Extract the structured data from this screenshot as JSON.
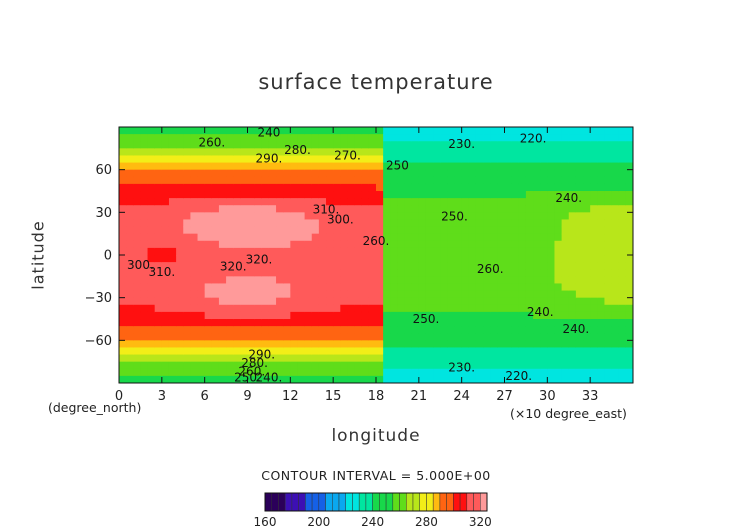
{
  "chart_data": {
    "type": "heatmap",
    "title": "surface temperature",
    "xlabel": "longitude",
    "ylabel": "latitude",
    "x_unit_left": "(degree_north)",
    "x_unit_right": "(×10 degree_east)",
    "xlim": [
      0,
      36
    ],
    "ylim": [
      -90,
      90
    ],
    "xticks": [
      "0",
      "3",
      "6",
      "9",
      "12",
      "15",
      "18",
      "21",
      "24",
      "27",
      "30",
      "33"
    ],
    "xtick_values": [
      0,
      3,
      6,
      9,
      12,
      15,
      18,
      21,
      24,
      27,
      30,
      33
    ],
    "yticks": [
      "60",
      "30",
      "0",
      "−30",
      "−60"
    ],
    "ytick_values": [
      60,
      30,
      0,
      -30,
      -60
    ],
    "contour_interval_text": "CONTOUR INTERVAL = 5.000E+00",
    "contour_interval": 5,
    "colorbar": {
      "min": 160,
      "max": 325,
      "tick_labels": [
        "160",
        "200",
        "240",
        "280",
        "320"
      ],
      "tick_values": [
        160,
        200,
        240,
        280,
        320
      ]
    },
    "contour_labels": [
      {
        "text": "240",
        "lon": 10.5,
        "lat": 86
      },
      {
        "text": "260.",
        "lon": 6.5,
        "lat": 79
      },
      {
        "text": "280.",
        "lon": 12.5,
        "lat": 74
      },
      {
        "text": "290.",
        "lon": 10.5,
        "lat": 68
      },
      {
        "text": "270.",
        "lon": 16,
        "lat": 70
      },
      {
        "text": "250",
        "lon": 19.5,
        "lat": 63
      },
      {
        "text": "230.",
        "lon": 24,
        "lat": 78
      },
      {
        "text": "220.",
        "lon": 29,
        "lat": 82
      },
      {
        "text": "240.",
        "lon": 31.5,
        "lat": 40
      },
      {
        "text": "250.",
        "lon": 23.5,
        "lat": 27
      },
      {
        "text": "310.",
        "lon": 14.5,
        "lat": 32
      },
      {
        "text": "300.",
        "lon": 15.5,
        "lat": 25
      },
      {
        "text": "320.",
        "lon": 9.8,
        "lat": -3
      },
      {
        "text": "320.",
        "lon": 8,
        "lat": -8
      },
      {
        "text": "260.",
        "lon": 18,
        "lat": 10
      },
      {
        "text": "300.",
        "lon": 1.5,
        "lat": -7
      },
      {
        "text": "310.",
        "lon": 3,
        "lat": -12
      },
      {
        "text": "260.",
        "lon": 26,
        "lat": -10
      },
      {
        "text": "240.",
        "lon": 29.5,
        "lat": -40
      },
      {
        "text": "240.",
        "lon": 32,
        "lat": -52
      },
      {
        "text": "250.",
        "lon": 21.5,
        "lat": -45
      },
      {
        "text": "290.",
        "lon": 10,
        "lat": -70
      },
      {
        "text": "280.",
        "lon": 9.5,
        "lat": -76
      },
      {
        "text": "260.",
        "lon": 9.3,
        "lat": -82
      },
      {
        "text": "250.",
        "lon": 9,
        "lat": -86
      },
      {
        "text": "240.",
        "lon": 10.5,
        "lat": -86
      },
      {
        "text": "230.",
        "lon": 24,
        "lat": -79
      },
      {
        "text": "220.",
        "lon": 28,
        "lat": -85
      }
    ]
  }
}
